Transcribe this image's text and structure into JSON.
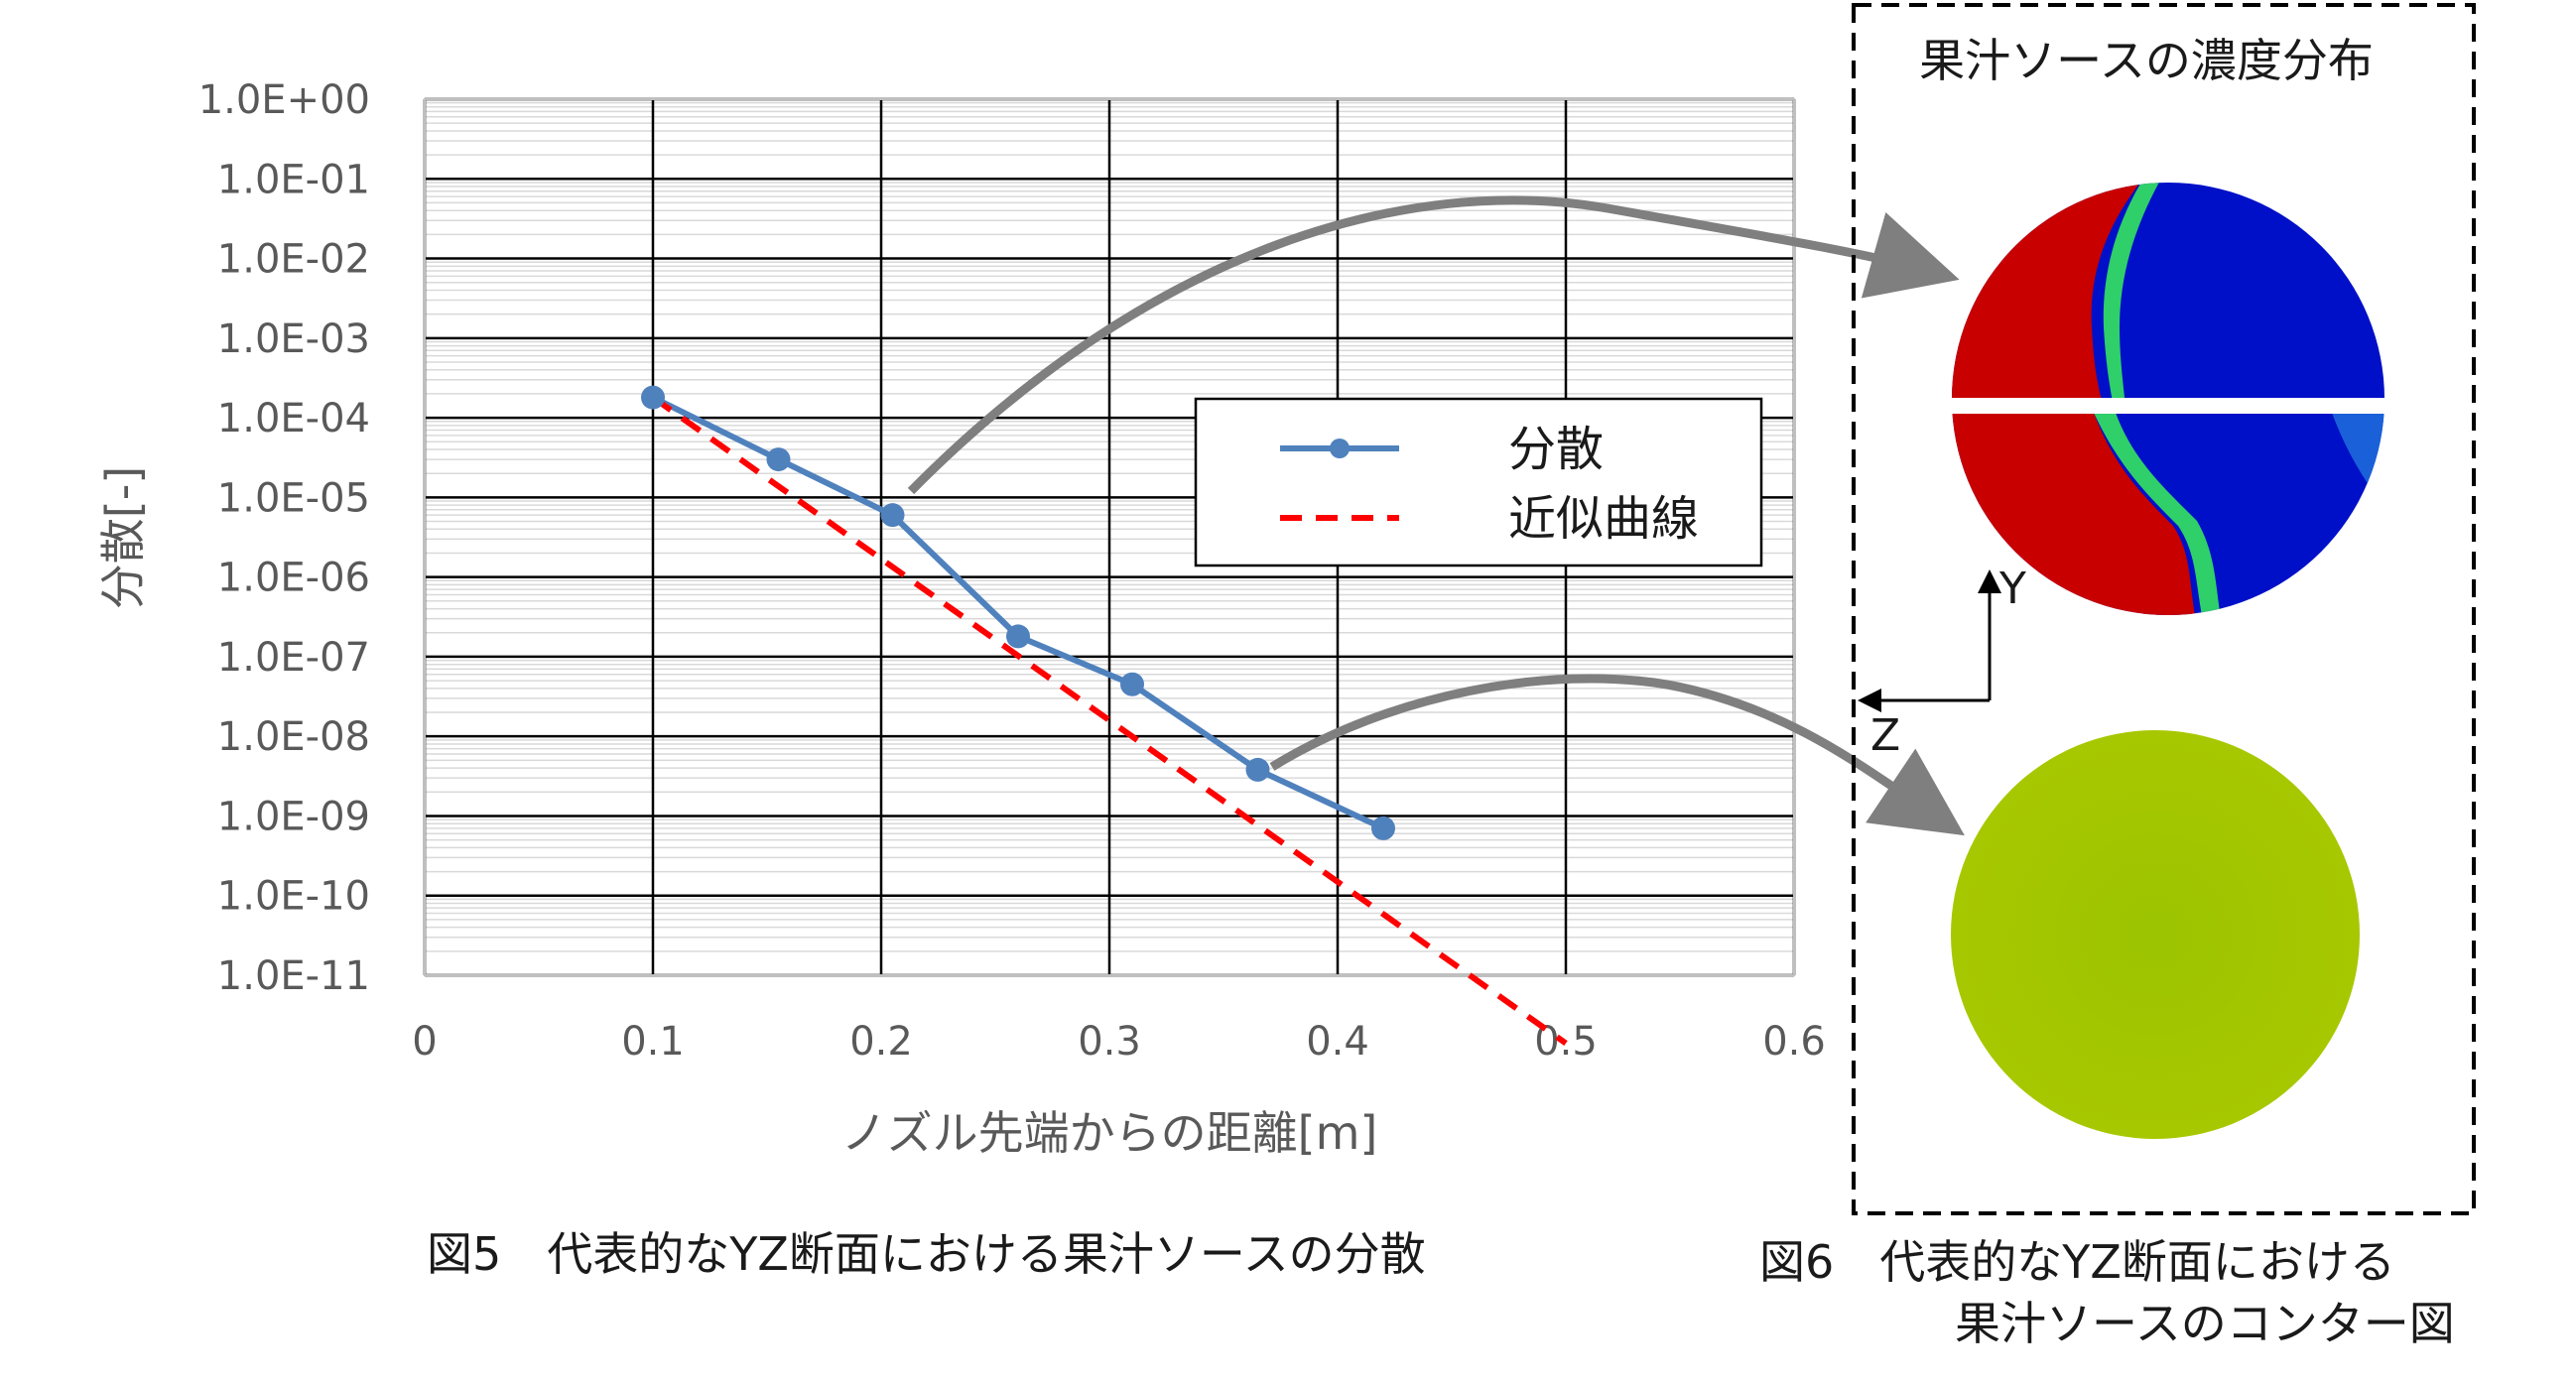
{
  "chart_data": {
    "type": "line",
    "xlabel": "ノズル先端からの距離[m]",
    "ylabel": "分散[-]",
    "xlim": [
      0,
      0.6
    ],
    "x_ticks": [
      0,
      0.1,
      0.2,
      0.3,
      0.4,
      0.5,
      0.6
    ],
    "x_tick_labels": [
      "0",
      "0.1",
      "0.2",
      "0.3",
      "0.4",
      "0.5",
      "0.6"
    ],
    "y_scale": "log",
    "ylim": [
      1e-11,
      1
    ],
    "y_ticks": [
      1,
      0.1,
      0.01,
      0.001,
      0.0001,
      1e-05,
      1e-06,
      1e-07,
      1e-08,
      1e-09,
      1e-10,
      1e-11
    ],
    "y_tick_labels": [
      "1.0E+00",
      "1.0E-01",
      "1.0E-02",
      "1.0E-03",
      "1.0E-04",
      "1.0E-05",
      "1.0E-06",
      "1.0E-07",
      "1.0E-08",
      "1.0E-09",
      "1.0E-10",
      "1.0E-11"
    ],
    "grid": true,
    "legend_position": "center-right",
    "series": [
      {
        "name": "分散",
        "style": "solid-marker",
        "color": "#4f81bd",
        "x": [
          0.1,
          0.155,
          0.205,
          0.26,
          0.31,
          0.365,
          0.42
        ],
        "y": [
          0.00018,
          3e-05,
          6e-06,
          1.8e-07,
          4.5e-08,
          3.8e-09,
          7e-10
        ]
      },
      {
        "name": "近似曲線",
        "style": "dashed",
        "color": "#ff0000",
        "x": [
          0.1,
          0.5
        ],
        "y": [
          0.00018,
          1.4e-12
        ]
      }
    ]
  },
  "captions": {
    "fig5": "図5　代表的なYZ断面における果汁ソースの分散",
    "fig6_line1": "図6　代表的なYZ断面における",
    "fig6_line2": "果汁ソースのコンター図"
  },
  "contour_panel": {
    "title": "果汁ソースの濃度分布",
    "axis_y": "Y",
    "axis_z": "Z",
    "colors": {
      "high": "#c80000",
      "low": "#0010c8",
      "mid": "#a6c800"
    }
  }
}
